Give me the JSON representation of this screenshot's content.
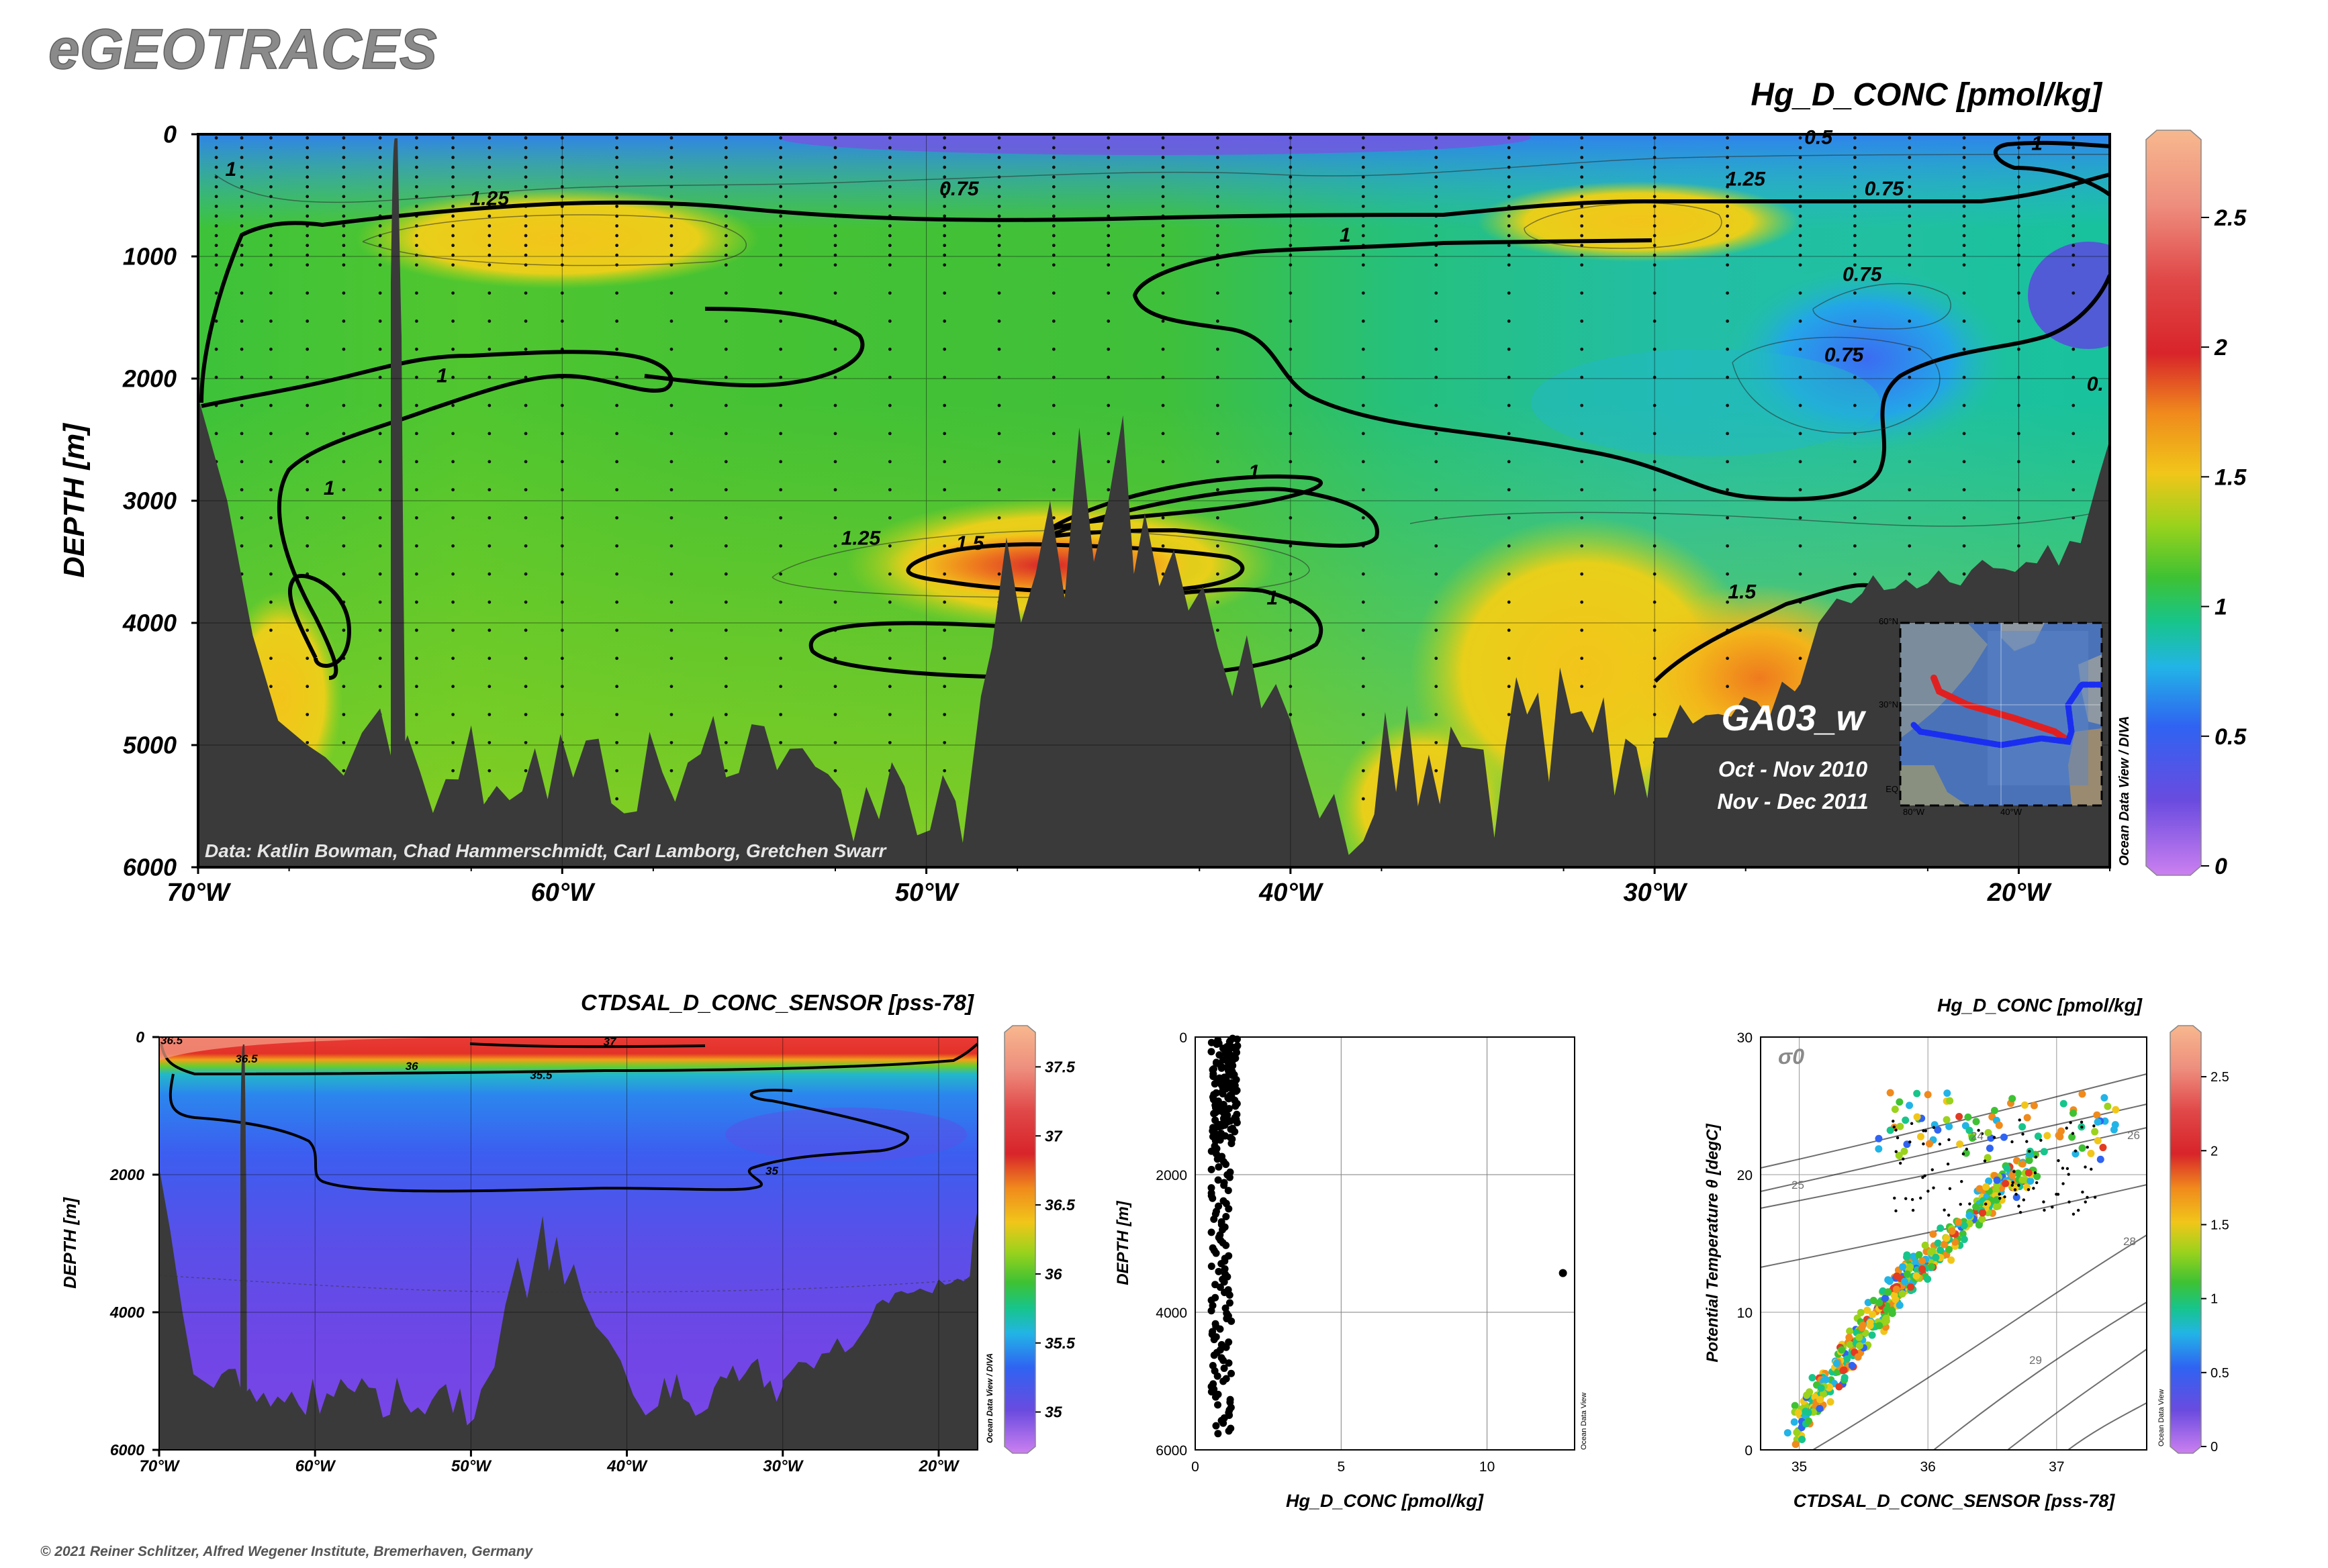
{
  "header": {
    "logo": "eGEOTRACES",
    "copyright": "© 2021 Reiner Schlitzer, Alfred Wegener Institute, Bremerhaven, Germany"
  },
  "colors": {
    "terrain": "#3a3a3a",
    "palette": [
      "#cc80f0",
      "#6a4bdf",
      "#2f63f2",
      "#22b4e6",
      "#17c58a",
      "#3ec233",
      "#9ad21c",
      "#f1c61a",
      "#f08a1c",
      "#e23b22",
      "#d8242a",
      "#ea6d6d",
      "#f7b88e"
    ]
  },
  "chart_data": [
    {
      "id": "main_section",
      "type": "heatmap",
      "title": "Hg_D_CONC [pmol/kg]",
      "ylabel": "DEPTH [m]",
      "xlabel": "",
      "xlim": [
        -70,
        -17.5
      ],
      "ylim": [
        6000,
        0
      ],
      "x_ticks": [
        -70,
        -60,
        -50,
        -40,
        -30,
        -20
      ],
      "x_tick_labels": [
        "70°W",
        "60°W",
        "50°W",
        "40°W",
        "30°W",
        "20°W"
      ],
      "y_ticks": [
        0,
        1000,
        2000,
        3000,
        4000,
        5000,
        6000
      ],
      "y_tick_labels": [
        "0",
        "1000",
        "2000",
        "3000",
        "4000",
        "5000",
        "6000"
      ],
      "colorbar": {
        "min": 0,
        "max": 2.8,
        "ticks": [
          0,
          0.5,
          1,
          1.5,
          2,
          2.5
        ],
        "tick_labels": [
          "0",
          "0.5",
          "1",
          "1.5",
          "2",
          "2.5"
        ]
      },
      "contour_labels": [
        {
          "text": "0.5",
          "lon": -25.5,
          "depth": 80
        },
        {
          "text": "1",
          "lon": -69.1,
          "depth": 340
        },
        {
          "text": "1.25",
          "lon": -62,
          "depth": 580
        },
        {
          "text": "0.75",
          "lon": -49.1,
          "depth": 500
        },
        {
          "text": "1.25",
          "lon": -27.5,
          "depth": 420
        },
        {
          "text": "0.75",
          "lon": -23.7,
          "depth": 500
        },
        {
          "text": "1",
          "lon": -19.5,
          "depth": 130
        },
        {
          "text": "1",
          "lon": -38.5,
          "depth": 880
        },
        {
          "text": "0.75",
          "lon": -24.3,
          "depth": 1200
        },
        {
          "text": "0.75",
          "lon": -24.8,
          "depth": 1860
        },
        {
          "text": "0.",
          "lon": -17.9,
          "depth": 2100
        },
        {
          "text": "1",
          "lon": -63.3,
          "depth": 2030
        },
        {
          "text": "1",
          "lon": -66.4,
          "depth": 2950
        },
        {
          "text": "1",
          "lon": -41,
          "depth": 2820
        },
        {
          "text": "1.25",
          "lon": -51.8,
          "depth": 3360
        },
        {
          "text": "1.5",
          "lon": -48.8,
          "depth": 3400
        },
        {
          "text": "1",
          "lon": -40.5,
          "depth": 3850
        },
        {
          "text": "1.5",
          "lon": -27.6,
          "depth": 3800
        }
      ],
      "source_note": "Data: Katlin Bowman, Chad Hammerschmidt, Carl Lamborg, Gretchen Swarr",
      "section_name": "GA03_w",
      "cruise_dates": [
        "Oct - Nov 2010",
        "Nov - Dec 2011"
      ],
      "inset_map": {
        "lat_labels": [
          "60°N",
          "30°N",
          "EQ"
        ],
        "lon_labels": [
          "80°W",
          "40°W"
        ],
        "tracks": [
          "red",
          "blue"
        ]
      },
      "credit": "Ocean Data View / DIVA"
    },
    {
      "id": "salinity_section",
      "type": "heatmap",
      "title": "CTDSAL_D_CONC_SENSOR [pss-78]",
      "ylabel": "DEPTH [m]",
      "xlabel": "",
      "xlim": [
        -70,
        -17.5
      ],
      "ylim": [
        6000,
        0
      ],
      "x_ticks": [
        -70,
        -60,
        -50,
        -40,
        -30,
        -20
      ],
      "x_tick_labels": [
        "70°W",
        "60°W",
        "50°W",
        "40°W",
        "30°W",
        "20°W"
      ],
      "y_ticks": [
        0,
        2000,
        4000,
        6000
      ],
      "y_tick_labels": [
        "0",
        "2000",
        "4000",
        "6000"
      ],
      "colorbar": {
        "min": 34.75,
        "max": 37.75,
        "ticks": [
          35,
          35.5,
          36,
          36.5,
          37,
          37.5
        ],
        "tick_labels": [
          "35",
          "35.5",
          "36",
          "36.5",
          "37",
          "37.5"
        ]
      },
      "contour_labels": [
        {
          "text": "36.5",
          "lon": -69.2,
          "depth": 100
        },
        {
          "text": "36.5",
          "lon": -64.4,
          "depth": 370
        },
        {
          "text": "37",
          "lon": -41.1,
          "depth": 120
        },
        {
          "text": "36",
          "lon": -53.8,
          "depth": 480
        },
        {
          "text": "35.5",
          "lon": -45.5,
          "depth": 610
        },
        {
          "text": "35",
          "lon": -30.7,
          "depth": 2000
        }
      ],
      "credit": "Ocean Data View / DIVA"
    },
    {
      "id": "profile",
      "type": "scatter",
      "xlabel": "Hg_D_CONC [pmol/kg]",
      "ylabel": "DEPTH [m]",
      "xlim": [
        0,
        13
      ],
      "ylim": [
        6000,
        0
      ],
      "x_ticks": [
        0,
        5,
        10
      ],
      "x_tick_labels": [
        "0",
        "5",
        "10"
      ],
      "y_ticks": [
        0,
        2000,
        4000,
        6000
      ],
      "y_tick_labels": [
        "0",
        "2000",
        "4000",
        "6000"
      ],
      "outlier": {
        "x": 12.6,
        "y": 3430
      },
      "credit": "Ocean Data View"
    },
    {
      "id": "ts_diagram",
      "type": "scatter",
      "title": "Hg_D_CONC [pmol/kg]",
      "xlabel": "CTDSAL_D_CONC_SENSOR [pss-78]",
      "ylabel": "Potential Temperature θ [degC]",
      "xlim": [
        34.7,
        37.7
      ],
      "ylim": [
        0,
        30
      ],
      "x_ticks": [
        35,
        36,
        37
      ],
      "x_tick_labels": [
        "35",
        "36",
        "37"
      ],
      "y_ticks": [
        0,
        10,
        20,
        30
      ],
      "y_tick_labels": [
        "0",
        "10",
        "20",
        "30"
      ],
      "sigma_label": "σ0",
      "isopycnal_labels": [
        "24",
        "25",
        "26",
        "28",
        "29"
      ],
      "colorbar": {
        "min": 0,
        "max": 2.8,
        "ticks": [
          0,
          0.5,
          1,
          1.5,
          2,
          2.5
        ],
        "tick_labels": [
          "0",
          "0.5",
          "1",
          "1.5",
          "2",
          "2.5"
        ]
      },
      "credit": "Ocean Data View"
    }
  ]
}
